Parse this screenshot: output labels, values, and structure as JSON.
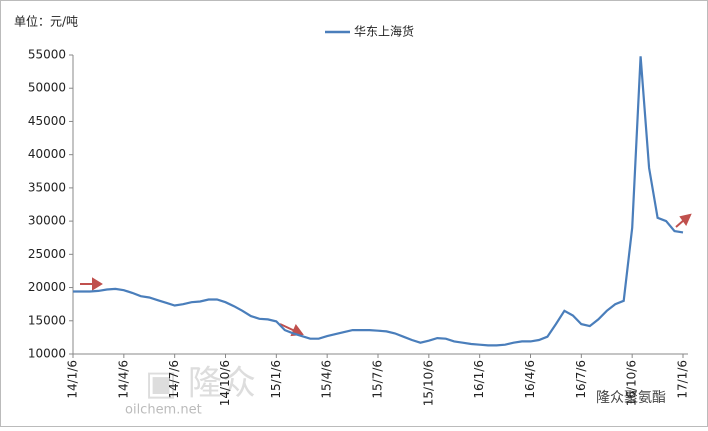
{
  "chart_data": {
    "type": "line",
    "y_axis_label": "单位：元/吨",
    "annotations": [
      "oilchem.net",
      "隆众聚氨酯"
    ],
    "categories": [
      "14/1/6",
      null,
      null,
      null,
      null,
      null,
      "14/4/6",
      null,
      null,
      null,
      null,
      null,
      "14/7/6",
      null,
      null,
      null,
      null,
      null,
      "14/10/6",
      null,
      null,
      null,
      null,
      null,
      "15/1/6",
      null,
      null,
      null,
      null,
      null,
      "15/4/6",
      null,
      null,
      null,
      null,
      null,
      "15/7/6",
      null,
      null,
      null,
      null,
      null,
      "15/10/6",
      null,
      null,
      null,
      null,
      null,
      "16/1/6",
      null,
      null,
      null,
      null,
      null,
      "16/4/6",
      null,
      null,
      null,
      null,
      null,
      "16/7/6",
      null,
      null,
      null,
      null,
      null,
      "16/10/6",
      null,
      null,
      null,
      null,
      null,
      "17/1/6"
    ],
    "series": [
      {
        "name": "华东上海货",
        "color": "#4a7ebb",
        "values": [
          19400,
          19400,
          19400,
          19500,
          19700,
          19800,
          19600,
          19200,
          18700,
          18500,
          18100,
          17700,
          17300,
          17500,
          17800,
          17900,
          18200,
          18200,
          17800,
          17200,
          16500,
          15700,
          15300,
          15200,
          14900,
          13600,
          13100,
          12700,
          12300,
          12300,
          12700,
          13000,
          13300,
          13600,
          13600,
          13600,
          13500,
          13400,
          13100,
          12600,
          12100,
          11700,
          12000,
          12400,
          12300,
          11900,
          11700,
          11500,
          11400,
          11300,
          11300,
          11400,
          11700,
          11900,
          11900,
          12100,
          12600,
          14500,
          16500,
          15800,
          14500,
          14200,
          15200,
          16500,
          17500,
          18000,
          29000,
          54800,
          38000,
          30500,
          30000,
          28500,
          28300
        ]
      }
    ],
    "ylim": [
      10000,
      55000
    ],
    "yticks": [
      10000,
      15000,
      20000,
      25000,
      30000,
      35000,
      40000,
      45000,
      50000,
      55000
    ],
    "grid": false
  }
}
